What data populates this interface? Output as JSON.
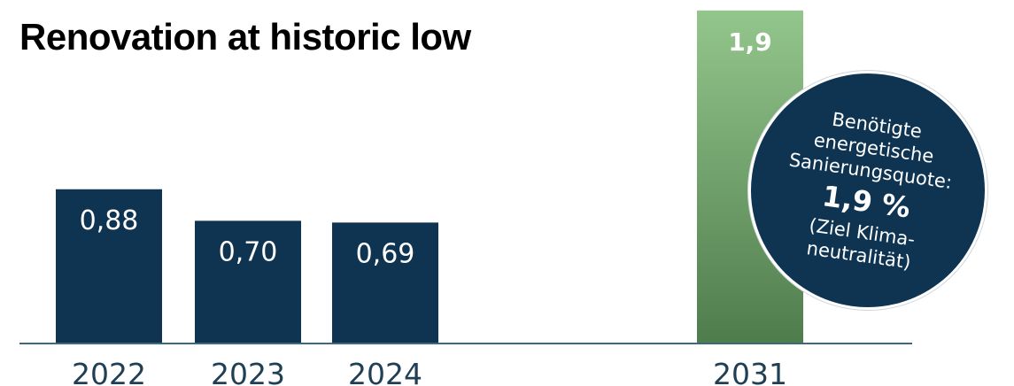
{
  "title": "Renovation at historic low",
  "callout": {
    "line1": "Benötigte",
    "line2": "energetische",
    "line3": "Sanierungsquote:",
    "value": "1,9 %",
    "line4": "(Ziel Klima-",
    "line5": "neutralität)"
  },
  "chart_data": {
    "type": "bar",
    "categories": [
      "2022",
      "2023",
      "2024",
      "2031"
    ],
    "values": [
      0.88,
      0.7,
      0.69,
      1.9
    ],
    "value_labels": [
      "0,88",
      "0,70",
      "0,69",
      "1,9"
    ],
    "bar_colors": [
      "#0e3452",
      "#0e3452",
      "#0e3452",
      "#7fb27a"
    ],
    "highlight_gradient": [
      "#93c68c",
      "#4f7c4c"
    ],
    "axis_color": "#3b6a7e",
    "ylim": [
      0,
      1.9
    ],
    "grid": false,
    "legend": "none"
  }
}
